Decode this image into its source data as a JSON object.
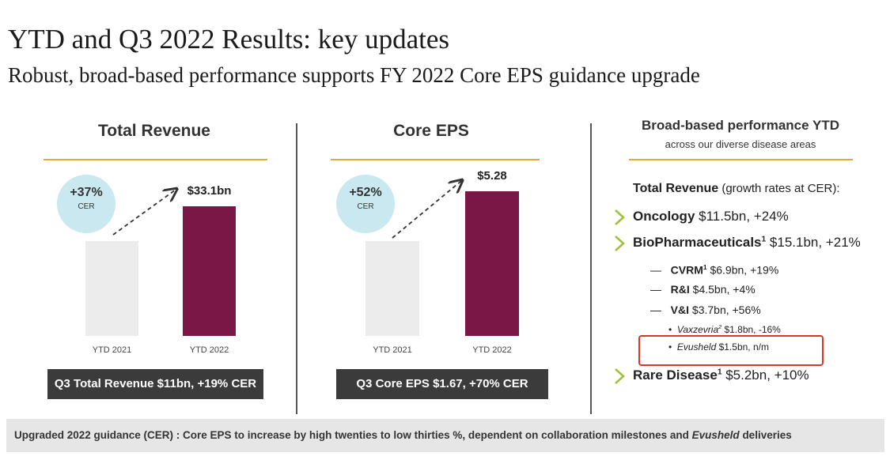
{
  "header": {
    "title": "YTD and Q3 2022 Results: key updates",
    "subtitle": "Robust, broad-based performance supports FY 2022 Core EPS guidance upgrade"
  },
  "revenue_panel": {
    "title": "Total Revenue",
    "growth_pct": "+37%",
    "growth_basis": "CER",
    "bar_value_label": "$33.1bn",
    "q3_summary": "Q3 Total Revenue $11bn, +19% CER"
  },
  "eps_panel": {
    "title": "Core EPS",
    "growth_pct": "+52%",
    "growth_basis": "CER",
    "bar_value_label": "$5.28",
    "q3_summary": "Q3 Core EPS $1.67, +70% CER"
  },
  "chart_data": [
    {
      "type": "bar",
      "title": "Total Revenue",
      "categories": [
        "YTD 2021",
        "YTD 2022"
      ],
      "values": [
        24.2,
        33.1
      ],
      "unit": "$bn",
      "value_labels": [
        "",
        "$33.1bn"
      ]
    },
    {
      "type": "bar",
      "title": "Core EPS",
      "categories": [
        "YTD 2021",
        "YTD 2022"
      ],
      "values": [
        3.47,
        5.28
      ],
      "unit": "$",
      "value_labels": [
        "",
        "$5.28"
      ]
    }
  ],
  "right_panel": {
    "title": "Broad-based performance YTD",
    "subtitle": "across our diverse disease areas",
    "total_revenue_label": "Total Revenue",
    "total_revenue_note": " (growth rates at CER):",
    "oncology": {
      "name": "Oncology",
      "detail": " $11.5bn, +24%"
    },
    "biopharma": {
      "name": "BioPharmaceuticals",
      "sup": "1",
      "detail": " $15.1bn, +21%"
    },
    "cvrm": {
      "dash": "—",
      "name": "CVRM",
      "sup": "1",
      "detail": " $6.9bn, +19%"
    },
    "ri": {
      "dash": "—",
      "name": "R&I",
      "detail": " $4.5bn, +4%"
    },
    "vi": {
      "dash": "—",
      "name": "V&I",
      "detail": " $3.7bn, +56%"
    },
    "vaxzevria": {
      "bullet": "•",
      "name": "Vaxzevria",
      "sup": "2",
      "detail": " $1.8bn, -16%"
    },
    "evusheld": {
      "bullet": "•",
      "name": "Evusheld",
      "detail": " $1.5bn, n/m"
    },
    "rare": {
      "name": "Rare Disease",
      "sup": "1",
      "detail": " $5.2bn, +10%"
    }
  },
  "footer": {
    "text": "Upgraded 2022 guidance (CER) : Core EPS to increase by high twenties to low thirties %, dependent on collaboration milestones and ",
    "italic": "Evusheld",
    "tail": " deliveries"
  },
  "colors": {
    "accent_orange": "#e2a93b",
    "plum": "#7a1747",
    "bar_grey": "#ececec",
    "circle_blue": "#c9e8ef",
    "chevron_green": "#9ac43a",
    "highlight_red": "#d9362b",
    "dark_box": "#3b3b3b"
  }
}
